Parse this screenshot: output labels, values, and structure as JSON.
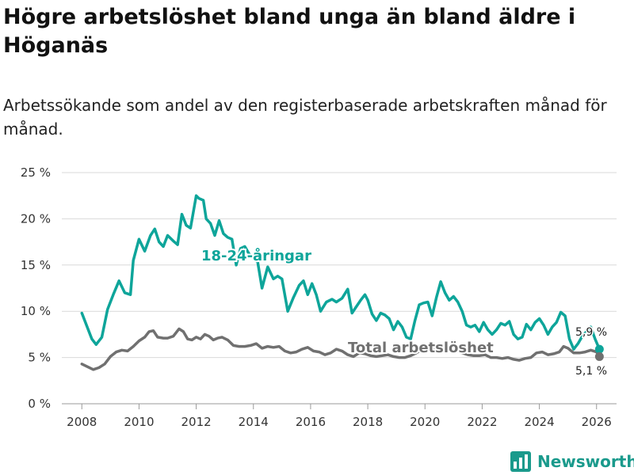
{
  "title": "Högre arbetslöshet bland unga än bland äldre i Höganäs",
  "subtitle": "Arbetssökande som andel av den registerbaserade arbetskraften månad för månad.",
  "brand": "Newsworthy",
  "colors": {
    "youth": "#0ea59a",
    "total": "#707070",
    "grid": "#d9d9d9",
    "brand": "#1a9a8c"
  },
  "icons": {
    "logo": "bar-chart-icon"
  },
  "chart_data": {
    "type": "line",
    "title": "Högre arbetslöshet bland unga än bland äldre i Höganäs",
    "xlabel": "",
    "ylabel": "",
    "xlim": [
      2007.3,
      2026.7
    ],
    "ylim": [
      0,
      25
    ],
    "grid": true,
    "x_ticks": [
      2008,
      2010,
      2012,
      2014,
      2016,
      2018,
      2020,
      2022,
      2024,
      2026
    ],
    "y_ticks": [
      0,
      5,
      10,
      15,
      20,
      25
    ],
    "y_tick_labels": [
      "0 %",
      "5 %",
      "10 %",
      "15 %",
      "20 %",
      "25 %"
    ],
    "series": [
      {
        "name": "18-24-åringar",
        "label": "18-24-åringar",
        "end_label": "5,9 %",
        "end_value": 5.9,
        "points": [
          [
            2008.0,
            9.8
          ],
          [
            2008.2,
            8.2
          ],
          [
            2008.35,
            7.0
          ],
          [
            2008.5,
            6.4
          ],
          [
            2008.7,
            7.2
          ],
          [
            2008.9,
            10.2
          ],
          [
            2009.1,
            11.8
          ],
          [
            2009.3,
            13.3
          ],
          [
            2009.5,
            12.0
          ],
          [
            2009.7,
            11.8
          ],
          [
            2009.8,
            15.5
          ],
          [
            2010.0,
            17.8
          ],
          [
            2010.2,
            16.5
          ],
          [
            2010.4,
            18.2
          ],
          [
            2010.55,
            18.9
          ],
          [
            2010.7,
            17.5
          ],
          [
            2010.85,
            17.0
          ],
          [
            2011.0,
            18.2
          ],
          [
            2011.2,
            17.6
          ],
          [
            2011.35,
            17.2
          ],
          [
            2011.5,
            20.5
          ],
          [
            2011.65,
            19.3
          ],
          [
            2011.8,
            19.0
          ],
          [
            2012.0,
            22.5
          ],
          [
            2012.1,
            22.2
          ],
          [
            2012.25,
            22.0
          ],
          [
            2012.35,
            20.0
          ],
          [
            2012.5,
            19.5
          ],
          [
            2012.65,
            18.2
          ],
          [
            2012.8,
            19.8
          ],
          [
            2012.95,
            18.4
          ],
          [
            2013.1,
            18.0
          ],
          [
            2013.25,
            17.8
          ],
          [
            2013.4,
            15.0
          ],
          [
            2013.55,
            16.8
          ],
          [
            2013.7,
            17.0
          ],
          [
            2013.85,
            16.2
          ],
          [
            2014.0,
            15.8
          ],
          [
            2014.15,
            15.3
          ],
          [
            2014.3,
            12.5
          ],
          [
            2014.5,
            14.8
          ],
          [
            2014.7,
            13.5
          ],
          [
            2014.85,
            13.8
          ],
          [
            2015.0,
            13.5
          ],
          [
            2015.2,
            10.0
          ],
          [
            2015.4,
            11.5
          ],
          [
            2015.6,
            12.8
          ],
          [
            2015.75,
            13.3
          ],
          [
            2015.9,
            11.8
          ],
          [
            2016.05,
            13.0
          ],
          [
            2016.2,
            11.8
          ],
          [
            2016.35,
            10.0
          ],
          [
            2016.55,
            11.0
          ],
          [
            2016.75,
            11.3
          ],
          [
            2016.9,
            11.0
          ],
          [
            2017.1,
            11.4
          ],
          [
            2017.3,
            12.4
          ],
          [
            2017.45,
            9.8
          ],
          [
            2017.6,
            10.5
          ],
          [
            2017.75,
            11.2
          ],
          [
            2017.9,
            11.8
          ],
          [
            2018.0,
            11.2
          ],
          [
            2018.15,
            9.7
          ],
          [
            2018.3,
            9.0
          ],
          [
            2018.45,
            9.8
          ],
          [
            2018.6,
            9.6
          ],
          [
            2018.75,
            9.2
          ],
          [
            2018.9,
            8.0
          ],
          [
            2019.05,
            8.9
          ],
          [
            2019.2,
            8.3
          ],
          [
            2019.35,
            7.2
          ],
          [
            2019.5,
            7.0
          ],
          [
            2019.65,
            9.0
          ],
          [
            2019.8,
            10.7
          ],
          [
            2019.95,
            10.9
          ],
          [
            2020.1,
            11.0
          ],
          [
            2020.25,
            9.5
          ],
          [
            2020.4,
            11.5
          ],
          [
            2020.55,
            13.2
          ],
          [
            2020.7,
            12.0
          ],
          [
            2020.85,
            11.2
          ],
          [
            2021.0,
            11.6
          ],
          [
            2021.15,
            11.0
          ],
          [
            2021.3,
            10.0
          ],
          [
            2021.45,
            8.5
          ],
          [
            2021.6,
            8.3
          ],
          [
            2021.75,
            8.5
          ],
          [
            2021.9,
            7.8
          ],
          [
            2022.05,
            8.8
          ],
          [
            2022.2,
            8.0
          ],
          [
            2022.35,
            7.5
          ],
          [
            2022.5,
            8.0
          ],
          [
            2022.65,
            8.7
          ],
          [
            2022.8,
            8.5
          ],
          [
            2022.95,
            8.9
          ],
          [
            2023.1,
            7.5
          ],
          [
            2023.25,
            7.0
          ],
          [
            2023.4,
            7.2
          ],
          [
            2023.55,
            8.6
          ],
          [
            2023.7,
            8.0
          ],
          [
            2023.85,
            8.8
          ],
          [
            2024.0,
            9.2
          ],
          [
            2024.15,
            8.5
          ],
          [
            2024.3,
            7.5
          ],
          [
            2024.45,
            8.3
          ],
          [
            2024.6,
            8.8
          ],
          [
            2024.75,
            9.9
          ],
          [
            2024.9,
            9.5
          ],
          [
            2025.05,
            7.0
          ],
          [
            2025.2,
            5.9
          ],
          [
            2025.35,
            6.5
          ],
          [
            2025.5,
            7.3
          ],
          [
            2025.65,
            7.8
          ],
          [
            2025.8,
            8.3
          ],
          [
            2025.95,
            7.0
          ],
          [
            2026.1,
            5.9
          ]
        ]
      },
      {
        "name": "Total arbetslöshet",
        "label": "Total arbetslöshet",
        "end_label": "5,1 %",
        "end_value": 5.1,
        "points": [
          [
            2008.0,
            4.3
          ],
          [
            2008.2,
            4.0
          ],
          [
            2008.4,
            3.7
          ],
          [
            2008.6,
            3.9
          ],
          [
            2008.8,
            4.3
          ],
          [
            2009.0,
            5.1
          ],
          [
            2009.2,
            5.6
          ],
          [
            2009.4,
            5.8
          ],
          [
            2009.6,
            5.7
          ],
          [
            2009.8,
            6.2
          ],
          [
            2010.0,
            6.8
          ],
          [
            2010.2,
            7.2
          ],
          [
            2010.35,
            7.8
          ],
          [
            2010.5,
            7.9
          ],
          [
            2010.65,
            7.2
          ],
          [
            2010.85,
            7.1
          ],
          [
            2011.0,
            7.1
          ],
          [
            2011.2,
            7.3
          ],
          [
            2011.4,
            8.1
          ],
          [
            2011.55,
            7.8
          ],
          [
            2011.7,
            7.0
          ],
          [
            2011.85,
            6.9
          ],
          [
            2012.0,
            7.2
          ],
          [
            2012.15,
            7.0
          ],
          [
            2012.3,
            7.5
          ],
          [
            2012.45,
            7.3
          ],
          [
            2012.6,
            6.9
          ],
          [
            2012.75,
            7.1
          ],
          [
            2012.9,
            7.2
          ],
          [
            2013.1,
            6.9
          ],
          [
            2013.3,
            6.3
          ],
          [
            2013.5,
            6.2
          ],
          [
            2013.7,
            6.2
          ],
          [
            2013.9,
            6.3
          ],
          [
            2014.1,
            6.5
          ],
          [
            2014.3,
            6.0
          ],
          [
            2014.5,
            6.2
          ],
          [
            2014.7,
            6.1
          ],
          [
            2014.9,
            6.2
          ],
          [
            2015.1,
            5.7
          ],
          [
            2015.3,
            5.5
          ],
          [
            2015.5,
            5.6
          ],
          [
            2015.7,
            5.9
          ],
          [
            2015.9,
            6.1
          ],
          [
            2016.1,
            5.7
          ],
          [
            2016.3,
            5.6
          ],
          [
            2016.5,
            5.3
          ],
          [
            2016.7,
            5.5
          ],
          [
            2016.9,
            5.9
          ],
          [
            2017.1,
            5.7
          ],
          [
            2017.3,
            5.3
          ],
          [
            2017.5,
            5.1
          ],
          [
            2017.7,
            5.5
          ],
          [
            2017.9,
            5.4
          ],
          [
            2018.1,
            5.2
          ],
          [
            2018.3,
            5.1
          ],
          [
            2018.5,
            5.2
          ],
          [
            2018.7,
            5.3
          ],
          [
            2018.9,
            5.1
          ],
          [
            2019.1,
            5.0
          ],
          [
            2019.3,
            5.0
          ],
          [
            2019.5,
            5.2
          ],
          [
            2019.7,
            5.5
          ],
          [
            2019.9,
            5.9
          ],
          [
            2020.1,
            6.0
          ],
          [
            2020.3,
            5.7
          ],
          [
            2020.5,
            6.4
          ],
          [
            2020.7,
            6.0
          ],
          [
            2020.9,
            5.8
          ],
          [
            2021.1,
            5.7
          ],
          [
            2021.3,
            5.5
          ],
          [
            2021.5,
            5.3
          ],
          [
            2021.7,
            5.2
          ],
          [
            2021.9,
            5.2
          ],
          [
            2022.1,
            5.3
          ],
          [
            2022.3,
            5.0
          ],
          [
            2022.5,
            5.0
          ],
          [
            2022.7,
            4.9
          ],
          [
            2022.9,
            5.0
          ],
          [
            2023.1,
            4.8
          ],
          [
            2023.3,
            4.7
          ],
          [
            2023.5,
            4.9
          ],
          [
            2023.7,
            5.0
          ],
          [
            2023.9,
            5.5
          ],
          [
            2024.1,
            5.6
          ],
          [
            2024.3,
            5.3
          ],
          [
            2024.5,
            5.4
          ],
          [
            2024.7,
            5.6
          ],
          [
            2024.85,
            6.2
          ],
          [
            2025.0,
            6.0
          ],
          [
            2025.2,
            5.5
          ],
          [
            2025.4,
            5.5
          ],
          [
            2025.6,
            5.6
          ],
          [
            2025.8,
            5.8
          ],
          [
            2026.0,
            5.6
          ],
          [
            2026.1,
            5.1
          ]
        ]
      }
    ]
  }
}
